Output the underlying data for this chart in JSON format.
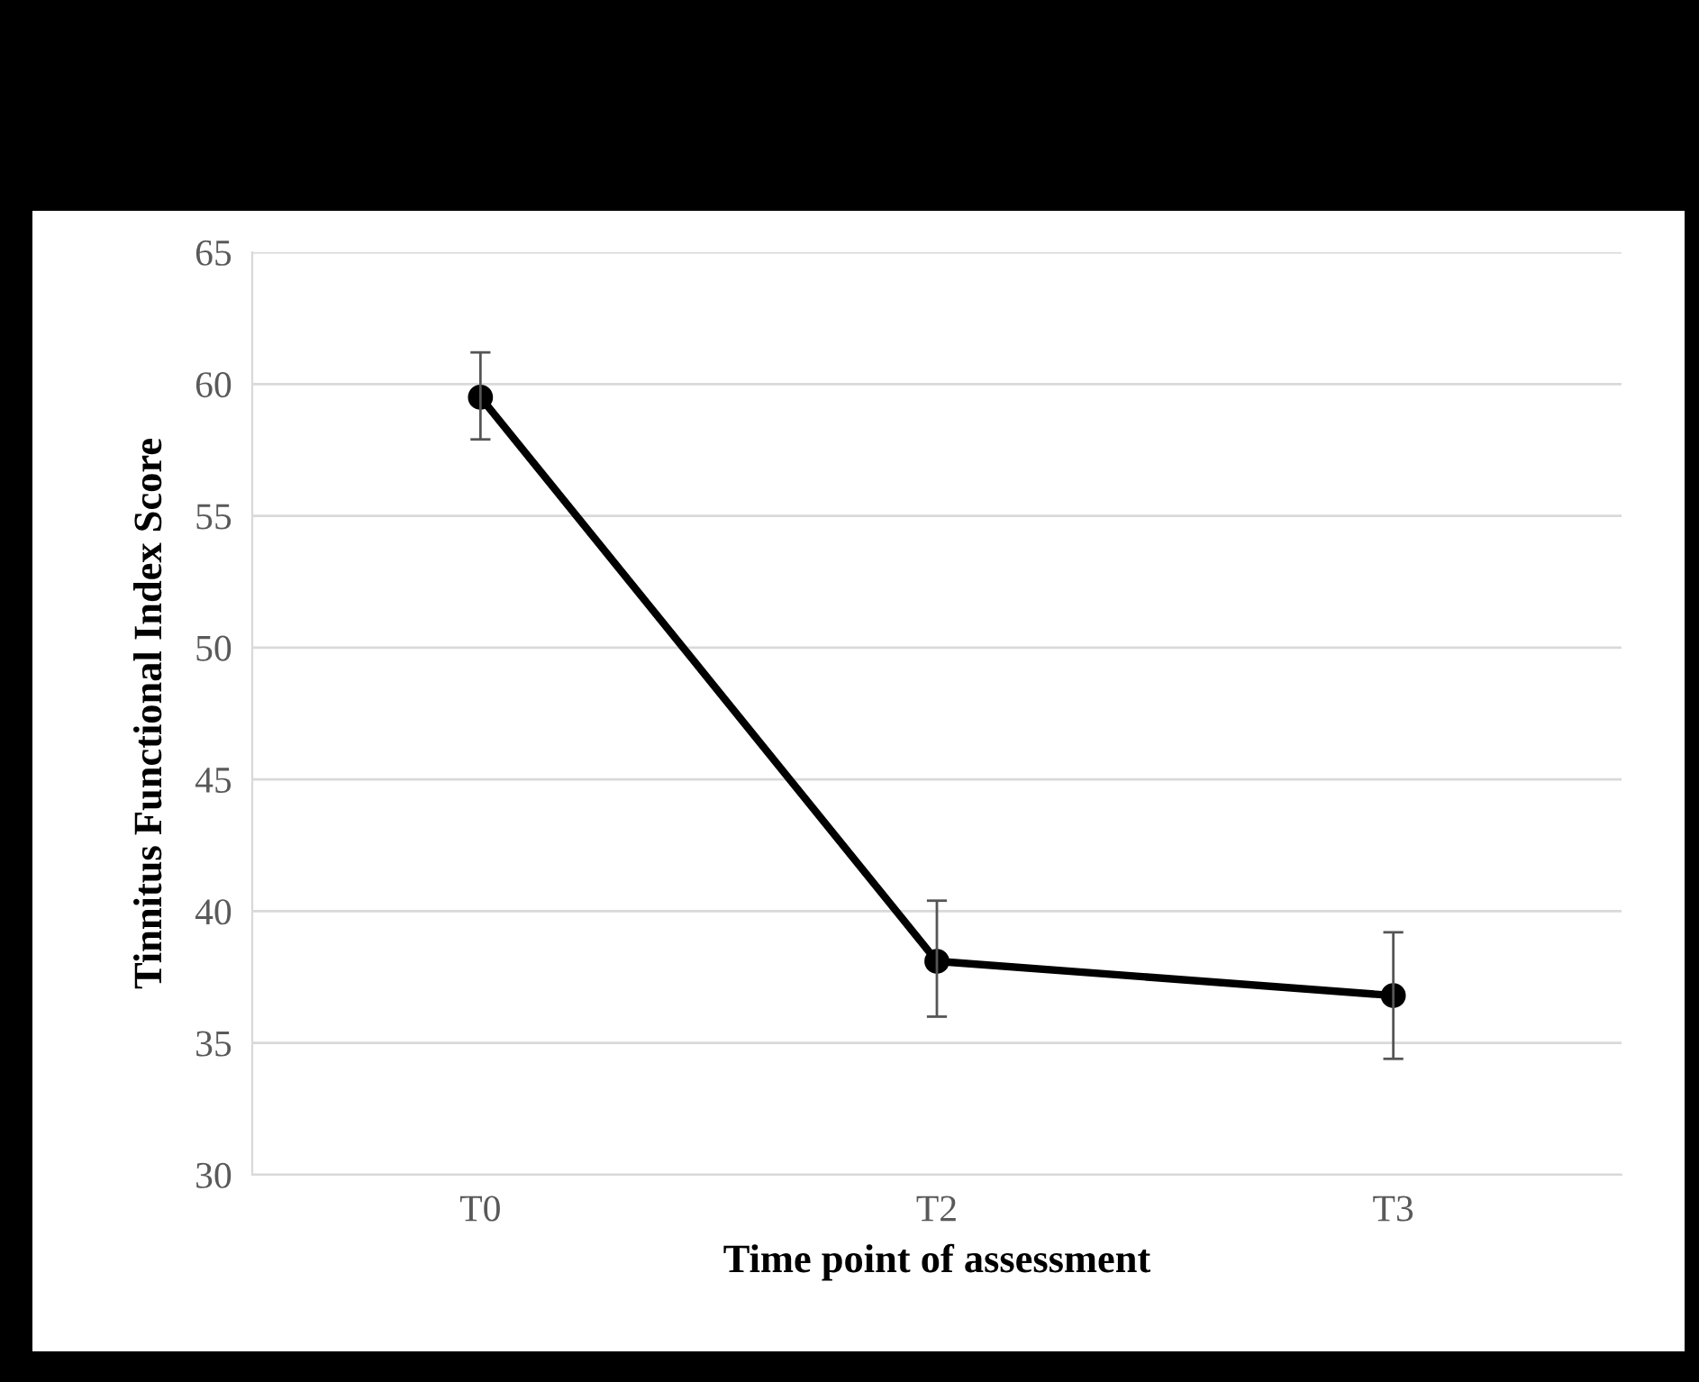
{
  "chart_data": {
    "type": "line",
    "xlabel": "Time point of assessment",
    "ylabel": "Tinnitus Functional Index Score",
    "categories": [
      "T0",
      "T2",
      "T3"
    ],
    "series": [
      {
        "color": "#000000",
        "values": [
          59.5,
          38.1,
          36.8
        ],
        "errors": [
          [
            57.9,
            61.2
          ],
          [
            36.0,
            40.4
          ],
          [
            34.4,
            39.2
          ]
        ]
      }
    ],
    "ylim": [
      30,
      65
    ],
    "yticks": [
      30,
      35,
      40,
      45,
      50,
      55,
      60,
      65
    ],
    "grid": "y",
    "marker": "circle",
    "line_style": "solid",
    "legend": false
  }
}
